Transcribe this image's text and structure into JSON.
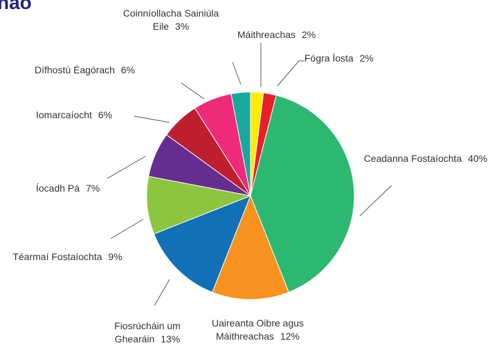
{
  "chart_data": {
    "type": "pie",
    "title": "nao",
    "categories": [
      "Máithreachas",
      "Fógra Íosta",
      "Ceadanna Fostaíochta",
      "Uaireanta Oibre agus Máithreachas",
      "Fiosrúcháin um Ghearáin",
      "Téarmaí Fostaíochta",
      "Íocadh Pá",
      "Iomarcaíocht",
      "Dífhostú Éagórach",
      "Coinníollacha Sainiúla Eile"
    ],
    "values": [
      2,
      2,
      40,
      12,
      13,
      9,
      7,
      6,
      6,
      3
    ],
    "value_labels": [
      "2%",
      "2%",
      "40%",
      "12%",
      "13%",
      "9%",
      "7%",
      "6%",
      "6%",
      "3%"
    ],
    "colors": [
      "#ffed00",
      "#e8202a",
      "#2db872",
      "#f7931e",
      "#1170b8",
      "#8cc63f",
      "#662d91",
      "#be1e2d",
      "#ee2a7b",
      "#19a89c"
    ]
  }
}
